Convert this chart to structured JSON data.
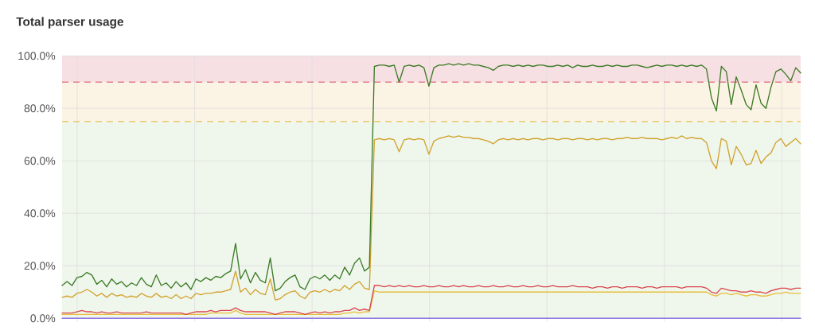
{
  "chart_data": {
    "type": "line",
    "title": "Total parser usage",
    "categories": [
      null,
      null,
      null,
      null,
      null,
      null,
      null,
      null,
      null,
      null,
      null,
      null,
      null,
      null,
      null,
      null,
      null,
      null,
      null,
      null,
      null,
      null,
      null,
      null,
      null,
      null,
      null,
      null,
      null,
      null,
      null,
      null,
      null,
      null,
      null,
      null,
      null,
      null,
      null,
      null,
      null,
      null,
      null,
      null,
      null,
      null,
      null,
      null,
      null,
      null,
      null,
      null,
      null,
      null,
      null,
      null,
      null,
      null,
      null,
      null,
      null,
      null,
      null,
      null,
      null,
      null,
      null,
      null,
      null,
      null,
      null,
      null,
      null,
      null,
      null,
      null,
      null,
      null,
      null,
      null,
      null,
      null,
      null,
      null,
      null,
      null,
      null,
      null,
      null,
      null,
      null,
      null,
      null,
      null,
      null,
      null,
      null,
      null,
      null,
      null,
      null,
      null,
      null,
      null,
      null,
      null,
      null,
      null,
      null,
      null,
      null,
      null,
      null,
      null,
      null,
      null,
      null,
      null,
      null,
      null,
      null,
      null,
      null,
      null,
      null,
      null,
      null,
      null,
      null,
      null,
      null,
      null,
      null,
      null,
      null,
      null,
      null,
      null,
      null,
      null,
      null,
      null,
      null,
      null,
      null,
      null,
      null,
      null,
      null,
      null
    ],
    "series": [
      {
        "color": "#9079e0",
        "values": [
          0,
          0,
          0,
          0,
          0,
          0,
          0,
          0,
          0,
          0,
          0,
          0,
          0,
          0,
          0,
          0,
          0,
          0,
          0,
          0,
          0,
          0,
          0,
          0,
          0,
          0,
          0,
          0,
          0,
          0,
          0,
          0,
          0,
          0,
          0,
          0,
          0,
          0,
          0,
          0,
          0,
          0,
          0,
          0,
          0,
          0,
          0,
          0,
          0,
          0,
          0,
          0,
          0,
          0,
          0,
          0,
          0,
          0,
          0,
          0,
          0,
          0,
          0,
          0,
          0,
          0,
          0,
          0,
          0,
          0,
          0,
          0,
          0,
          0,
          0,
          0,
          0,
          0,
          0,
          0,
          0,
          0,
          0,
          0,
          0,
          0,
          0,
          0,
          0,
          0,
          0,
          0,
          0,
          0,
          0,
          0,
          0,
          0,
          0,
          0,
          0,
          0,
          0,
          0,
          0,
          0,
          0,
          0,
          0,
          0,
          0,
          0,
          0,
          0,
          0,
          0,
          0,
          0,
          0,
          0,
          0,
          0,
          0,
          0,
          0,
          0,
          0,
          0,
          0,
          0,
          0,
          0,
          0,
          0,
          0,
          0,
          0,
          0,
          0,
          0,
          0,
          0,
          0,
          0,
          0,
          0,
          0,
          0,
          0,
          0
        ]
      },
      {
        "color": "#e8bf3c",
        "values": [
          1.5,
          1.5,
          1.5,
          1.5,
          1.5,
          1.5,
          1.5,
          1.5,
          1.5,
          1.5,
          1.5,
          1.5,
          1.5,
          1.5,
          1.5,
          1.5,
          1.5,
          1.5,
          1.5,
          1.5,
          1.5,
          1.5,
          1.5,
          1.5,
          1.5,
          1.5,
          1.5,
          1.5,
          1.5,
          1.5,
          2,
          2,
          2,
          2,
          2,
          3,
          2,
          1.5,
          1.5,
          1.5,
          1.5,
          1.5,
          1.5,
          1.5,
          1.5,
          1.5,
          1.5,
          1.5,
          1.5,
          1.5,
          1.5,
          1.5,
          1.5,
          1.5,
          1.5,
          1.5,
          1.5,
          2,
          2,
          2.5,
          2,
          2.5,
          2.5,
          10.5,
          10,
          10,
          10,
          10,
          10,
          10,
          10,
          10,
          10,
          10,
          10,
          10,
          10,
          10,
          10,
          10,
          10,
          10,
          10,
          10,
          10,
          10,
          10,
          10,
          10,
          10,
          10,
          10,
          10,
          10,
          10,
          10,
          10,
          10,
          10,
          10,
          10,
          10,
          10,
          10,
          10,
          10,
          10,
          10,
          10,
          10,
          10,
          10,
          10,
          10,
          10,
          10,
          10,
          10,
          10,
          10,
          10,
          10,
          10,
          10,
          10,
          10,
          10,
          10,
          10,
          10,
          10,
          9,
          8.5,
          9.5,
          9.5,
          9,
          9.5,
          9,
          8.5,
          9,
          9,
          8.5,
          8.5,
          9,
          9.5,
          9.5,
          10,
          9.5,
          9.5,
          9.5
        ]
      },
      {
        "color": "#d9474f",
        "values": [
          2,
          2,
          2,
          2.5,
          3,
          2.5,
          2.5,
          2,
          2.5,
          2,
          2,
          2.5,
          2,
          2,
          2,
          2,
          2,
          2.5,
          2,
          2,
          2,
          2,
          2,
          2,
          2,
          1.5,
          2,
          2.5,
          2.5,
          2.5,
          3,
          2.5,
          3,
          3,
          3,
          4,
          3,
          2.5,
          2.5,
          2.5,
          2.5,
          2.5,
          2,
          1.5,
          2,
          2.5,
          2.5,
          2.5,
          2,
          1.5,
          2,
          2.5,
          2,
          2.5,
          2,
          2.5,
          2.5,
          3,
          3,
          4,
          3,
          3.5,
          3,
          12.5,
          12.5,
          12,
          12.5,
          12,
          12.5,
          12,
          12.5,
          12,
          12,
          12.5,
          12,
          12,
          12.5,
          12,
          12,
          12.5,
          12,
          12.5,
          12,
          12,
          12.5,
          12,
          12,
          12.5,
          12,
          12,
          12.5,
          12,
          12,
          12.5,
          12,
          12,
          12.5,
          12,
          12,
          12.5,
          12,
          12,
          12,
          12.5,
          12,
          12,
          12,
          11.5,
          12,
          12,
          11.5,
          12,
          12,
          11.5,
          12,
          12,
          12,
          11.5,
          12,
          12,
          11.5,
          12,
          12,
          12,
          12,
          11.5,
          12,
          12,
          12,
          12,
          11.5,
          10,
          9.5,
          11.5,
          11,
          10.5,
          10.5,
          10,
          10,
          10.5,
          10,
          10,
          9.5,
          10.5,
          11,
          11.5,
          11.5,
          11,
          11.5,
          11.5
        ]
      },
      {
        "color": "#d1a22c",
        "values": [
          8,
          8.5,
          8,
          9.5,
          10,
          11,
          10,
          8.5,
          9.5,
          8,
          9.5,
          8.5,
          9,
          8,
          8.5,
          8,
          9.5,
          8.5,
          8,
          9.5,
          8,
          8.5,
          7.5,
          9,
          7.5,
          8.5,
          7.5,
          9.5,
          9,
          9.5,
          9.5,
          10,
          10,
          10.5,
          11,
          18,
          10,
          11.5,
          9,
          11,
          9.5,
          9,
          15,
          7,
          7.5,
          9,
          10,
          10.5,
          8.5,
          7.5,
          10,
          10.5,
          10,
          11,
          10,
          11,
          10.5,
          12.5,
          11,
          13,
          14,
          11.5,
          11,
          68,
          68.5,
          68,
          68.5,
          68,
          63.5,
          68,
          68.5,
          68,
          68.5,
          68,
          62.5,
          67.5,
          68.5,
          69,
          69.5,
          69,
          69.5,
          69,
          69,
          68.5,
          68.5,
          68,
          67.5,
          66.5,
          68,
          68.5,
          68,
          68.5,
          68,
          68.5,
          68,
          68.5,
          68.5,
          68,
          68.5,
          68.5,
          68,
          68.5,
          68.5,
          68,
          68.5,
          68.5,
          68,
          68.5,
          68,
          68.5,
          68.5,
          68,
          68.5,
          68.5,
          69,
          68.5,
          68.5,
          69,
          68.5,
          68.5,
          68.5,
          68,
          68.5,
          69,
          68.5,
          69.5,
          68.5,
          69,
          68.5,
          68.5,
          67,
          60,
          57,
          68.5,
          67.5,
          58.5,
          65.5,
          62.5,
          58.5,
          59,
          64,
          59,
          61.5,
          63,
          67,
          68.5,
          65.5,
          67,
          68.5,
          66.5
        ]
      },
      {
        "color": "#3b7a25",
        "values": [
          12.5,
          14,
          12.5,
          15.5,
          16,
          17.5,
          16.5,
          13,
          14.5,
          12,
          15,
          13,
          14,
          12,
          13.5,
          12.5,
          15.5,
          13,
          12,
          16.5,
          12.5,
          13.5,
          11.5,
          14,
          12,
          13.5,
          11,
          15,
          14,
          15.5,
          14.5,
          16,
          15.5,
          17,
          18,
          28.5,
          15,
          18.5,
          13.5,
          17.5,
          14.5,
          13.5,
          23,
          10.5,
          11.5,
          14,
          15.5,
          16.5,
          12,
          11,
          15,
          16,
          15,
          16.5,
          14.5,
          16.5,
          15,
          19.5,
          16.5,
          21,
          23,
          18,
          19.5,
          96,
          96.5,
          96.5,
          96,
          96.5,
          90,
          96,
          96.5,
          96,
          96.5,
          95.5,
          88.5,
          95.5,
          96.5,
          96.5,
          97,
          96.5,
          97,
          96.5,
          97,
          96.5,
          96.5,
          96,
          95.5,
          94.5,
          96,
          96.5,
          96.5,
          96,
          96.5,
          96,
          96.5,
          96,
          96.5,
          96.5,
          96,
          96,
          96.5,
          96,
          96.5,
          95.5,
          96.5,
          96,
          96,
          96.5,
          96,
          96,
          96.5,
          96,
          96.5,
          96,
          96,
          96.5,
          96.5,
          96,
          95.5,
          96,
          96.5,
          96,
          96.5,
          96.5,
          96,
          96.5,
          96,
          96.5,
          96,
          96.5,
          95,
          84,
          79,
          96,
          94,
          81.5,
          92,
          87,
          81.5,
          79.5,
          89,
          82,
          80,
          88,
          94,
          95,
          93,
          90.5,
          95.5,
          93.5
        ]
      }
    ],
    "ylim": [
      0,
      100
    ],
    "yticks": [
      {
        "value": 0,
        "label": "0.0%"
      },
      {
        "value": 20,
        "label": "20.0%"
      },
      {
        "value": 40,
        "label": "40.0%"
      },
      {
        "value": 60,
        "label": "60.0%"
      },
      {
        "value": 80,
        "label": "80.0%"
      },
      {
        "value": 100,
        "label": "100.0%"
      }
    ],
    "tick_labels": "y",
    "grid": true,
    "bands": [
      {
        "axis": "y",
        "from": 0,
        "to": 75,
        "color": "#eff6ec"
      },
      {
        "axis": "y",
        "from": 75,
        "to": 90,
        "color": "#fbf3e3"
      },
      {
        "axis": "y",
        "from": 90,
        "to": 100,
        "color": "#f7e0e3"
      }
    ],
    "ref_lines": [
      {
        "axis": "y",
        "value": 90,
        "color": "#e27d8a",
        "line_style": "dashed"
      },
      {
        "axis": "y",
        "value": 75,
        "color": "#ecca6f",
        "line_style": "dashed"
      }
    ]
  }
}
